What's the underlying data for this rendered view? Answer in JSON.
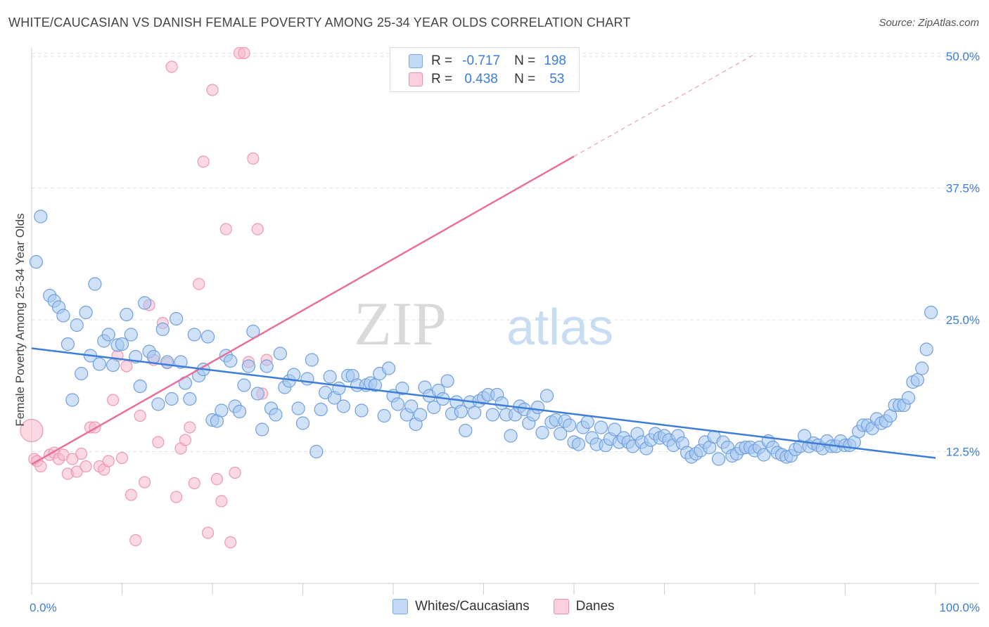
{
  "title": "WHITE/CAUCASIAN VS DANISH FEMALE POVERTY AMONG 25-34 YEAR OLDS CORRELATION CHART",
  "source": "Source: ZipAtlas.com",
  "watermark": {
    "zip": "ZIP",
    "atlas": "atlas"
  },
  "legend": {
    "rows": [
      {
        "r_label": "R =",
        "r_value": "-0.717",
        "n_label": "N =",
        "n_value": "198",
        "color": "#a8c8f0"
      },
      {
        "r_label": "R =",
        "r_value": "0.438",
        "n_label": "N =",
        "n_value": "53",
        "color": "#f7b8cb"
      }
    ]
  },
  "bottom_legend": [
    {
      "label": "Whites/Caucasians",
      "color": "#a8c8f0"
    },
    {
      "label": "Danes",
      "color": "#f7b8cb"
    }
  ],
  "chart_data": {
    "type": "scatter",
    "ylabel": "Female Poverty Among 25-34 Year Olds",
    "xlim": [
      0,
      100
    ],
    "ylim": [
      0,
      50
    ],
    "x_tick_labels": [
      "0.0%",
      "100.0%"
    ],
    "y_ticks": [
      12.5,
      25.0,
      37.5,
      50.0
    ],
    "y_tick_labels": [
      "12.5%",
      "25.0%",
      "37.5%",
      "50.0%"
    ],
    "grid": true,
    "series": [
      {
        "name": "Whites/Caucasians",
        "color": "#3b7dd8",
        "fill": "#a8c8f0",
        "trend": {
          "x0": 0,
          "y0": 22.3,
          "x1": 100,
          "y1": 11.9
        },
        "points": [
          [
            0.5,
            30.5
          ],
          [
            1,
            34.8
          ],
          [
            2,
            27.3
          ],
          [
            2.5,
            26.8
          ],
          [
            3,
            26.2
          ],
          [
            3.5,
            25.4
          ],
          [
            4,
            22.7
          ],
          [
            4.5,
            17.4
          ],
          [
            5,
            24.5
          ],
          [
            5.5,
            19.9
          ],
          [
            6,
            25.7
          ],
          [
            6.5,
            21.6
          ],
          [
            7,
            28.4
          ],
          [
            7.5,
            20.8
          ],
          [
            8,
            23.0
          ],
          [
            8.5,
            23.6
          ],
          [
            9,
            20.7
          ],
          [
            9.5,
            22.6
          ],
          [
            10,
            22.7
          ],
          [
            10.5,
            25.5
          ],
          [
            11,
            23.6
          ],
          [
            11.5,
            21.5
          ],
          [
            12,
            18.7
          ],
          [
            12.5,
            26.6
          ],
          [
            13,
            22.0
          ],
          [
            13.5,
            21.5
          ],
          [
            14,
            17.0
          ],
          [
            14.5,
            24.1
          ],
          [
            15,
            21.0
          ],
          [
            15.5,
            17.5
          ],
          [
            16,
            25.1
          ],
          [
            16.5,
            21.0
          ],
          [
            17,
            19.0
          ],
          [
            17.5,
            17.5
          ],
          [
            18,
            23.6
          ],
          [
            18.5,
            19.7
          ],
          [
            19,
            20.3
          ],
          [
            19.5,
            23.4
          ],
          [
            20,
            15.5
          ],
          [
            20.5,
            15.4
          ],
          [
            21,
            16.4
          ],
          [
            21.5,
            21.6
          ],
          [
            22,
            21.1
          ],
          [
            22.5,
            16.8
          ],
          [
            23,
            16.3
          ],
          [
            23.5,
            18.8
          ],
          [
            24,
            20.6
          ],
          [
            24.5,
            23.9
          ],
          [
            25,
            18.0
          ],
          [
            25.5,
            14.6
          ],
          [
            26,
            20.6
          ],
          [
            26.5,
            16.6
          ],
          [
            27,
            16.0
          ],
          [
            27.5,
            21.8
          ],
          [
            28,
            18.6
          ],
          [
            28.5,
            19.2
          ],
          [
            29,
            19.8
          ],
          [
            29.5,
            16.6
          ],
          [
            30,
            15.2
          ],
          [
            30.5,
            19.4
          ],
          [
            31,
            21.2
          ],
          [
            31.5,
            12.5
          ],
          [
            32,
            16.5
          ],
          [
            32.5,
            18.1
          ],
          [
            33,
            19.6
          ],
          [
            33.5,
            17.6
          ],
          [
            34,
            18.5
          ],
          [
            34.5,
            16.8
          ],
          [
            35,
            19.7
          ],
          [
            35.5,
            19.7
          ],
          [
            36,
            18.8
          ],
          [
            36.5,
            16.4
          ],
          [
            37,
            18.8
          ],
          [
            37.5,
            19.0
          ],
          [
            38,
            18.8
          ],
          [
            38.5,
            19.9
          ],
          [
            39,
            15.9
          ],
          [
            39.5,
            20.4
          ],
          [
            40,
            17.8
          ],
          [
            40.5,
            17.0
          ],
          [
            41,
            18.5
          ],
          [
            41.5,
            16.0
          ],
          [
            42,
            16.8
          ],
          [
            42.5,
            15.1
          ],
          [
            43,
            16.0
          ],
          [
            43.5,
            18.6
          ],
          [
            44,
            17.8
          ],
          [
            44.5,
            16.7
          ],
          [
            45,
            18.3
          ],
          [
            45.5,
            17.5
          ],
          [
            46,
            19.2
          ],
          [
            46.5,
            16.1
          ],
          [
            47,
            17.2
          ],
          [
            47.5,
            16.3
          ],
          [
            48,
            14.5
          ],
          [
            48.5,
            17.2
          ],
          [
            49,
            16.2
          ],
          [
            49.5,
            17.3
          ],
          [
            50,
            17.6
          ],
          [
            50.5,
            17.9
          ],
          [
            51,
            16.0
          ],
          [
            51.5,
            17.9
          ],
          [
            52,
            17.1
          ],
          [
            52.5,
            16.0
          ],
          [
            53,
            14.0
          ],
          [
            53.5,
            16.0
          ],
          [
            54,
            16.8
          ],
          [
            54.5,
            16.5
          ],
          [
            55,
            15.2
          ],
          [
            55.5,
            16.0
          ],
          [
            56,
            16.7
          ],
          [
            56.5,
            14.3
          ],
          [
            57,
            17.8
          ],
          [
            57.5,
            15.3
          ],
          [
            58,
            15.5
          ],
          [
            58.5,
            14.2
          ],
          [
            59,
            15.4
          ],
          [
            59.5,
            15.0
          ],
          [
            60,
            13.4
          ],
          [
            60.5,
            13.2
          ],
          [
            61,
            14.8
          ],
          [
            61.5,
            15.3
          ],
          [
            62,
            13.8
          ],
          [
            62.5,
            13.2
          ],
          [
            63,
            14.8
          ],
          [
            63.5,
            13.1
          ],
          [
            64,
            13.7
          ],
          [
            64.5,
            14.6
          ],
          [
            65,
            13.4
          ],
          [
            65.5,
            13.8
          ],
          [
            66,
            13.4
          ],
          [
            66.5,
            13.0
          ],
          [
            67,
            14.2
          ],
          [
            67.5,
            13.4
          ],
          [
            68,
            12.8
          ],
          [
            68.5,
            13.6
          ],
          [
            69,
            14.2
          ],
          [
            69.5,
            13.8
          ],
          [
            70,
            14.0
          ],
          [
            70.5,
            13.6
          ],
          [
            71,
            13.1
          ],
          [
            71.5,
            14.0
          ],
          [
            72,
            13.3
          ],
          [
            72.5,
            12.4
          ],
          [
            73,
            12.0
          ],
          [
            73.5,
            12.3
          ],
          [
            74,
            12.6
          ],
          [
            74.5,
            13.4
          ],
          [
            75,
            12.9
          ],
          [
            75.5,
            13.9
          ],
          [
            76,
            11.8
          ],
          [
            76.5,
            13.4
          ],
          [
            77,
            12.9
          ],
          [
            77.5,
            12.1
          ],
          [
            78,
            12.3
          ],
          [
            78.5,
            12.8
          ],
          [
            79,
            12.9
          ],
          [
            79.5,
            12.9
          ],
          [
            80,
            12.6
          ],
          [
            80.5,
            12.9
          ],
          [
            81,
            12.2
          ],
          [
            81.5,
            13.5
          ],
          [
            82,
            12.9
          ],
          [
            82.5,
            12.4
          ],
          [
            83,
            12.2
          ],
          [
            83.5,
            12.0
          ],
          [
            84,
            12.1
          ],
          [
            84.5,
            12.7
          ],
          [
            85,
            13.0
          ],
          [
            85.5,
            14.0
          ],
          [
            86,
            13.0
          ],
          [
            86.5,
            13.3
          ],
          [
            87,
            13.1
          ],
          [
            87.5,
            12.8
          ],
          [
            88,
            13.5
          ],
          [
            88.5,
            13.0
          ],
          [
            89,
            13.0
          ],
          [
            89.5,
            13.5
          ],
          [
            90,
            13.1
          ],
          [
            90.5,
            13.1
          ],
          [
            91,
            13.4
          ],
          [
            91.5,
            14.4
          ],
          [
            92,
            15.0
          ],
          [
            92.5,
            15.0
          ],
          [
            93,
            14.7
          ],
          [
            93.5,
            15.6
          ],
          [
            94,
            15.2
          ],
          [
            94.5,
            15.4
          ],
          [
            95,
            15.9
          ],
          [
            95.5,
            16.9
          ],
          [
            96,
            16.9
          ],
          [
            96.5,
            16.9
          ],
          [
            97,
            17.6
          ],
          [
            97.5,
            19.1
          ],
          [
            98,
            19.3
          ],
          [
            98.5,
            20.4
          ],
          [
            99,
            22.2
          ],
          [
            99.5,
            25.7
          ]
        ]
      },
      {
        "name": "Danes",
        "color": "#e8709a",
        "fill": "#f7b8cb",
        "trend": {
          "x0": 0,
          "y0": 11.3,
          "x1": 60,
          "y1": 40.5,
          "dash_x1": 80,
          "dash_y1": 50.2
        },
        "points": [
          [
            0,
            14.5
          ],
          [
            0.3,
            11.8
          ],
          [
            0.6,
            11.6
          ],
          [
            1,
            11.1
          ],
          [
            2,
            12.2
          ],
          [
            2.5,
            12.4
          ],
          [
            3,
            11.8
          ],
          [
            3.5,
            12.2
          ],
          [
            4,
            10.4
          ],
          [
            4.5,
            11.8
          ],
          [
            5,
            10.6
          ],
          [
            5.5,
            12.3
          ],
          [
            6,
            11.1
          ],
          [
            6.5,
            14.8
          ],
          [
            7,
            14.8
          ],
          [
            7.5,
            11.1
          ],
          [
            8,
            10.8
          ],
          [
            8.5,
            11.6
          ],
          [
            9,
            17.4
          ],
          [
            9.5,
            21.6
          ],
          [
            10,
            11.9
          ],
          [
            10.5,
            20.6
          ],
          [
            11,
            8.4
          ],
          [
            11.5,
            4.1
          ],
          [
            12,
            15.9
          ],
          [
            12.5,
            9.6
          ],
          [
            13,
            26.4
          ],
          [
            13.5,
            21.2
          ],
          [
            14,
            13.4
          ],
          [
            14.5,
            24.7
          ],
          [
            15,
            20.9
          ],
          [
            15.5,
            49.0
          ],
          [
            16,
            8.2
          ],
          [
            16.5,
            12.8
          ],
          [
            17,
            13.6
          ],
          [
            17.5,
            14.8
          ],
          [
            18,
            9.5
          ],
          [
            18.5,
            28.4
          ],
          [
            19,
            40.0
          ],
          [
            19.5,
            4.8
          ],
          [
            20,
            46.8
          ],
          [
            20.5,
            9.9
          ],
          [
            21,
            7.8
          ],
          [
            21.5,
            33.6
          ],
          [
            22,
            3.9
          ],
          [
            22.5,
            10.5
          ],
          [
            23,
            50.3
          ],
          [
            23.5,
            50.3
          ],
          [
            24,
            21.0
          ],
          [
            24.5,
            40.3
          ],
          [
            25,
            33.6
          ],
          [
            25.5,
            18.0
          ],
          [
            26,
            21.2
          ]
        ]
      }
    ]
  }
}
